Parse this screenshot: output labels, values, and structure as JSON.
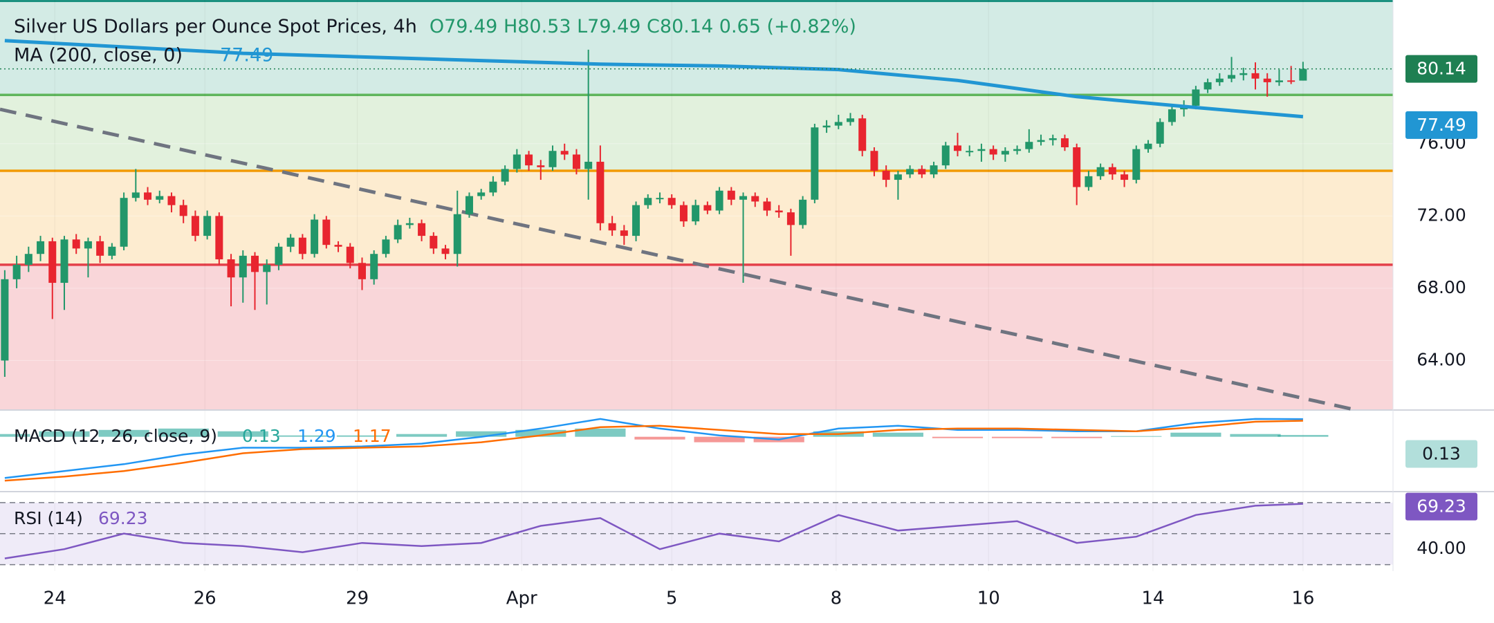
{
  "chart_data": [
    {
      "type": "candlestick",
      "title": "Silver US Dollars per Ounce Spot Prices, 4h",
      "ohlc_text": "O79.49 H80.53 L79.49 C80.14 0.65 (+0.82%)",
      "ylim": [
        61.3,
        83.95
      ],
      "yticks": [
        {
          "value": 64,
          "label": "64.00"
        },
        {
          "value": 68,
          "label": "68.00"
        },
        {
          "value": 72,
          "label": "72.00"
        },
        {
          "value": 76,
          "label": "76.00"
        }
      ],
      "xticks": [
        {
          "value": 4.2,
          "label": "24"
        },
        {
          "value": 16.8,
          "label": "26"
        },
        {
          "value": 29.6,
          "label": "29"
        },
        {
          "value": 43.4,
          "label": "Apr"
        },
        {
          "value": 56,
          "label": "5"
        },
        {
          "value": 69.8,
          "label": "8"
        },
        {
          "value": 82.6,
          "label": "10"
        },
        {
          "value": 96.4,
          "label": "14"
        },
        {
          "value": 109,
          "label": "16"
        }
      ],
      "up_color": "#22976a",
      "down_color": "#e8252f",
      "background": "#c9eef3",
      "levels": [
        {
          "value": 83.9,
          "color": "#1b9180",
          "fill": "#d3ebe5"
        },
        {
          "value": 78.7,
          "color": "#5fb55c",
          "fill": "#e2f1dd"
        },
        {
          "value": 74.5,
          "color": "#f29a05",
          "fill": "#fdecd0"
        },
        {
          "value": 69.3,
          "color": "#e4404a",
          "fill": "#f9d6d9"
        }
      ],
      "trendline": {
        "x": [
          -0.4,
          113.2
        ],
        "values": [
          77.9,
          61.3
        ],
        "color": "#6f7480"
      },
      "open": [
        64.0,
        68.5,
        69.3,
        69.9,
        70.6,
        68.3,
        70.7,
        70.2,
        70.6,
        69.8,
        70.3,
        73.0,
        73.3,
        72.9,
        73.1,
        72.6,
        72.0,
        70.9,
        72.0,
        69.6,
        68.6,
        69.8,
        68.9,
        69.3,
        70.3,
        70.8,
        69.9,
        71.8,
        70.4,
        70.3,
        69.4,
        68.5,
        69.9,
        70.7,
        71.5,
        71.6,
        70.9,
        70.2,
        69.9,
        72.1,
        73.1,
        73.3,
        73.9,
        74.6,
        75.4,
        74.8,
        74.7,
        75.6,
        75.4,
        74.6,
        75.0,
        71.6,
        71.2,
        70.9,
        72.6,
        73.0,
        73.0,
        72.6,
        71.7,
        72.6,
        72.3,
        73.4,
        72.9,
        73.1,
        72.8,
        72.3,
        72.2,
        71.5,
        72.9,
        76.9,
        77.0,
        77.2,
        77.4,
        75.6,
        74.5,
        74.0,
        74.3,
        74.6,
        74.3,
        74.8,
        75.9,
        75.6,
        75.6,
        75.7,
        75.4,
        75.6,
        75.7,
        76.1,
        76.2,
        76.3,
        75.8,
        73.6,
        74.2,
        74.7,
        74.3,
        74.0,
        75.7,
        76.0,
        77.2,
        77.9,
        78.1,
        79.0,
        79.4,
        79.6,
        79.8,
        79.9,
        79.6,
        79.4,
        79.5,
        79.49
      ],
      "high": [
        69.0,
        69.8,
        70.3,
        70.9,
        70.8,
        70.9,
        71.0,
        70.8,
        70.9,
        70.5,
        73.3,
        74.6,
        73.6,
        73.4,
        73.3,
        72.9,
        72.3,
        72.3,
        72.2,
        69.9,
        70.1,
        70.0,
        69.6,
        70.5,
        71.0,
        71.0,
        72.1,
        72.0,
        70.6,
        70.5,
        69.7,
        70.1,
        70.9,
        71.8,
        71.9,
        71.8,
        71.1,
        70.4,
        73.4,
        73.3,
        73.5,
        74.2,
        74.8,
        75.7,
        75.6,
        75.1,
        75.9,
        76.0,
        75.7,
        81.2,
        75.9,
        72.0,
        71.5,
        72.8,
        73.2,
        73.3,
        73.2,
        72.8,
        72.9,
        72.8,
        73.6,
        73.6,
        73.3,
        73.3,
        73.0,
        72.6,
        72.4,
        73.1,
        77.1,
        77.3,
        77.6,
        77.7,
        77.6,
        75.8,
        74.8,
        74.5,
        74.8,
        74.8,
        75.0,
        76.1,
        76.6,
        75.9,
        76.0,
        75.9,
        75.8,
        75.9,
        76.8,
        76.5,
        76.5,
        76.5,
        76.0,
        74.5,
        74.9,
        74.9,
        74.5,
        75.9,
        76.2,
        77.4,
        78.2,
        78.4,
        79.2,
        79.6,
        79.9,
        80.8,
        80.2,
        80.5,
        79.9,
        80.1,
        80.3,
        80.53
      ],
      "low": [
        63.1,
        68.0,
        68.9,
        69.5,
        66.3,
        66.8,
        69.9,
        68.6,
        69.4,
        69.6,
        70.1,
        72.8,
        72.6,
        72.7,
        72.2,
        71.6,
        70.6,
        70.7,
        69.3,
        67.0,
        67.2,
        66.8,
        67.1,
        69.0,
        70.0,
        69.6,
        69.7,
        70.2,
        70.0,
        69.1,
        67.9,
        68.2,
        69.7,
        70.5,
        71.3,
        70.6,
        69.9,
        69.6,
        69.2,
        71.9,
        72.9,
        73.1,
        73.7,
        74.4,
        74.5,
        74.0,
        74.5,
        75.1,
        74.3,
        72.9,
        71.2,
        70.9,
        70.4,
        70.6,
        72.4,
        72.7,
        72.4,
        71.4,
        71.5,
        72.1,
        72.1,
        72.6,
        68.3,
        72.5,
        72.0,
        71.9,
        69.8,
        71.3,
        72.7,
        76.6,
        76.8,
        77.0,
        75.3,
        74.2,
        73.6,
        72.9,
        74.1,
        74.1,
        74.1,
        74.6,
        75.3,
        75.3,
        75.0,
        75.1,
        75.0,
        75.4,
        75.5,
        75.9,
        75.9,
        75.6,
        72.6,
        73.4,
        74.0,
        74.0,
        73.6,
        73.8,
        75.5,
        75.8,
        77.0,
        77.5,
        77.9,
        78.8,
        79.2,
        79.4,
        79.5,
        79.0,
        78.6,
        79.2,
        79.3,
        79.49
      ],
      "close": [
        68.5,
        69.3,
        69.9,
        70.6,
        68.3,
        70.7,
        70.2,
        70.6,
        69.8,
        70.3,
        73.0,
        73.3,
        72.9,
        73.1,
        72.6,
        72.0,
        70.9,
        72.0,
        69.6,
        68.6,
        69.8,
        68.9,
        69.3,
        70.3,
        70.8,
        69.9,
        71.8,
        70.4,
        70.3,
        69.4,
        68.5,
        69.9,
        70.7,
        71.5,
        71.6,
        70.9,
        70.2,
        69.9,
        72.1,
        73.1,
        73.3,
        73.9,
        74.6,
        75.4,
        74.8,
        74.7,
        75.6,
        75.4,
        74.6,
        75.0,
        71.6,
        71.2,
        70.9,
        72.6,
        73.0,
        73.0,
        72.6,
        71.7,
        72.6,
        72.3,
        73.4,
        72.9,
        73.1,
        72.8,
        72.3,
        72.2,
        71.5,
        72.9,
        76.9,
        77.0,
        77.2,
        77.4,
        75.6,
        74.5,
        74.0,
        74.3,
        74.6,
        74.3,
        74.8,
        75.9,
        75.6,
        75.6,
        75.7,
        75.4,
        75.6,
        75.7,
        76.1,
        76.2,
        76.3,
        75.8,
        73.6,
        74.2,
        74.7,
        74.3,
        74.0,
        75.7,
        76.0,
        77.2,
        77.9,
        78.1,
        79.0,
        79.4,
        79.6,
        79.8,
        79.9,
        79.6,
        79.4,
        79.5,
        79.49,
        80.14
      ],
      "close_badge_color": "#1e7f52",
      "ma": {
        "name": "MA (200, close, 0)",
        "color": "#2196d3",
        "x": [
          0,
          20,
          40,
          50,
          60,
          70,
          80,
          90,
          100,
          109
        ],
        "values": [
          81.7,
          81.0,
          80.6,
          80.4,
          80.3,
          80.1,
          79.5,
          78.6,
          78.0,
          77.49
        ]
      }
    },
    {
      "type": "macd",
      "title": "MACD (12, 26, close, 9)",
      "ylim": [
        -3.9,
        1.9
      ],
      "x": [
        0,
        5,
        10,
        15,
        20,
        25,
        30,
        35,
        40,
        45,
        50,
        55,
        60,
        65,
        70,
        75,
        80,
        85,
        90,
        95,
        100,
        105,
        109
      ],
      "series": [
        {
          "name": "Histogram",
          "color": "#26a69a",
          "neg_color": "#ef5350",
          "values": [
            0.2,
            0.4,
            0.5,
            0.6,
            0.4,
            0.1,
            0.1,
            0.2,
            0.4,
            0.5,
            0.6,
            -0.2,
            -0.4,
            -0.4,
            0.4,
            0.3,
            -0.1,
            -0.1,
            -0.1,
            0.05,
            0.3,
            0.2,
            0.13
          ]
        },
        {
          "name": "MACD",
          "color": "#2196f3",
          "values": [
            -3.0,
            -2.5,
            -2.0,
            -1.3,
            -0.8,
            -0.8,
            -0.7,
            -0.5,
            0.0,
            0.6,
            1.3,
            0.6,
            0.1,
            -0.2,
            0.6,
            0.8,
            0.5,
            0.5,
            0.4,
            0.4,
            1.0,
            1.3,
            1.29
          ]
        },
        {
          "name": "Signal",
          "color": "#ff6d00",
          "values": [
            -3.2,
            -2.9,
            -2.5,
            -1.9,
            -1.2,
            -0.9,
            -0.8,
            -0.7,
            -0.4,
            0.1,
            0.7,
            0.8,
            0.5,
            0.2,
            0.2,
            0.5,
            0.6,
            0.6,
            0.5,
            0.4,
            0.7,
            1.1,
            1.17
          ]
        }
      ]
    },
    {
      "type": "rsi",
      "title": "RSI (14)",
      "color": "#7e57c2",
      "ylim": [
        25.8,
        76.2
      ],
      "yticks": [
        {
          "value": 40,
          "label": "40.00"
        }
      ],
      "levels": [
        70,
        50,
        30
      ],
      "x": [
        0,
        5,
        10,
        15,
        20,
        25,
        30,
        35,
        40,
        45,
        50,
        55,
        60,
        65,
        70,
        75,
        80,
        85,
        90,
        95,
        100,
        105,
        109
      ],
      "values": [
        34,
        40,
        50,
        44,
        42,
        38,
        44,
        42,
        44,
        55,
        60,
        40,
        50,
        45,
        62,
        52,
        55,
        58,
        44,
        48,
        62,
        68,
        69.23
      ]
    }
  ]
}
